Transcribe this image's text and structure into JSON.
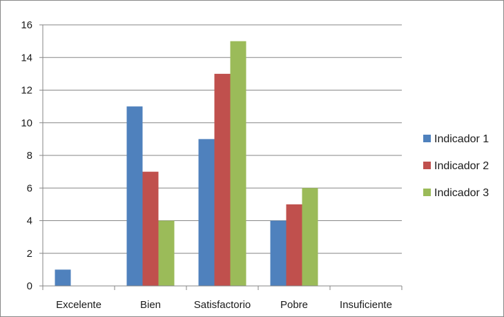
{
  "chart_data": {
    "type": "bar",
    "title": "",
    "xlabel": "",
    "ylabel": "",
    "categories": [
      "Excelente",
      "Bien",
      "Satisfactorio",
      "Pobre",
      "Insuficiente"
    ],
    "series": [
      {
        "name": "Indicador 1",
        "color": "#4F81BD",
        "values": [
          1,
          11,
          9,
          4,
          0
        ]
      },
      {
        "name": "Indicador 2",
        "color": "#C0504D",
        "values": [
          0,
          7,
          13,
          5,
          0
        ]
      },
      {
        "name": "Indicador 3",
        "color": "#9BBB59",
        "values": [
          0,
          4,
          15,
          6,
          0
        ]
      }
    ],
    "ylim": [
      0,
      16
    ],
    "yticks": [
      "0",
      "2",
      "4",
      "6",
      "8",
      "10",
      "12",
      "14",
      "16"
    ],
    "grid": true,
    "legend_position": "right"
  }
}
